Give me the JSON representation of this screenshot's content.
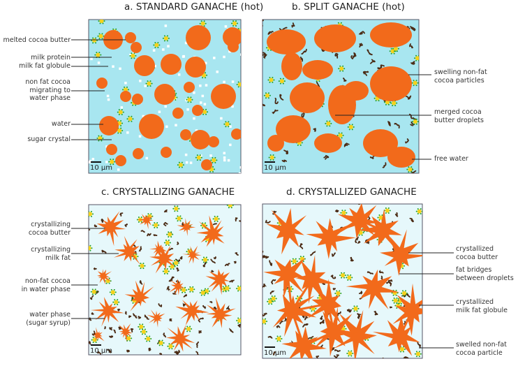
{
  "panels": [
    {
      "id": "a",
      "title": "a. STANDARD GANACHE (hot)",
      "scale": "10 µm",
      "labels": [
        "melted cocoa butter",
        "milk protein",
        "milk fat globule",
        "non fat cocoa\nmigrating to\nwater phase",
        "water",
        "sugar crystal"
      ]
    },
    {
      "id": "b",
      "title": "b. SPLIT GANACHE (hot)",
      "scale": "10 µm",
      "labels": [
        "swelling non-fat\ncocoa particles",
        "merged cocoa\nbutter droplets",
        "free water"
      ]
    },
    {
      "id": "c",
      "title": "c. CRYSTALLIZING GANACHE",
      "scale": "10 µm",
      "labels": [
        "crystallizing\ncocoa butter",
        "crystallizing\nmilk fat",
        "non-fat cocoa\nin water phase",
        "water phase\n(sugar syrup)"
      ]
    },
    {
      "id": "d",
      "title": "d. CRYSTALLIZED GANACHE",
      "scale": "10 µm",
      "labels": [
        "crystallized\ncocoa butter",
        "fat bridges\nbetween droplets",
        "crystallized\nmilk fat globule",
        "swelled non-fat\ncocoa particle"
      ]
    }
  ],
  "colors": {
    "fat": "#f26a1b",
    "water_hot": "#a8e6f0",
    "water_cold": "#e6f8fb",
    "milk_fat": "#f5d21a",
    "protein": "#22a02a",
    "cocoa": "#4a2a14",
    "sugar": "#ffffff"
  }
}
